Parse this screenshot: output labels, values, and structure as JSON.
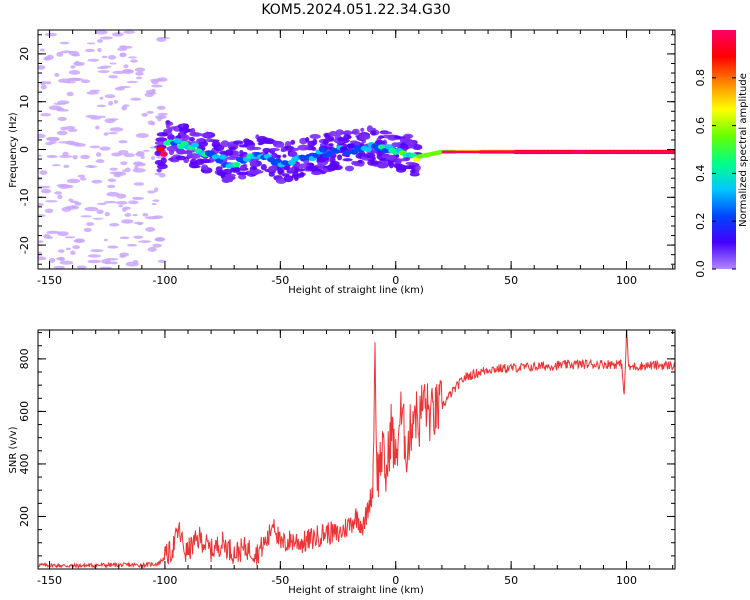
{
  "title": "KOM5.2024.051.22.34.G30",
  "chart_data": [
    {
      "type": "heatmap",
      "xlabel": "Height of straight line (km)",
      "ylabel": "Frequency (Hz)",
      "xlim": [
        -155,
        121
      ],
      "ylim": [
        -25,
        25
      ],
      "xticks": [
        -150,
        -100,
        -50,
        0,
        50,
        100
      ],
      "xtick_labels": [
        "-150",
        "-100",
        "-50",
        "0",
        "50",
        "100"
      ],
      "yticks": [
        -20,
        -10,
        0,
        10,
        20
      ],
      "ytick_labels": [
        "-20",
        "-10",
        "0",
        "10",
        "20"
      ],
      "colorbar": {
        "label": "Normalized spectral amplitude",
        "range": [
          0,
          1
        ],
        "ticks": [
          0.0,
          0.2,
          0.4,
          0.6,
          0.8
        ],
        "tick_labels": [
          "0.0",
          "0.2",
          "0.4",
          "0.6",
          "0.8"
        ],
        "colormap": [
          "#b388ff",
          "#4400ff",
          "#0044ff",
          "#00c8ff",
          "#00ff88",
          "#66ff00",
          "#ffff00",
          "#ff8800",
          "#ff0000",
          "#ff0066"
        ]
      },
      "ridge": [
        {
          "x": -100,
          "y": 2.0,
          "amp": 0.3
        },
        {
          "x": -90,
          "y": 1.0,
          "amp": 0.4
        },
        {
          "x": -80,
          "y": -1.0,
          "amp": 0.25
        },
        {
          "x": -72,
          "y": -3.0,
          "amp": 0.35
        },
        {
          "x": -60,
          "y": -1.0,
          "amp": 0.3
        },
        {
          "x": -48,
          "y": -3.0,
          "amp": 0.2
        },
        {
          "x": -35,
          "y": -1.0,
          "amp": 0.3
        },
        {
          "x": -20,
          "y": 0.0,
          "amp": 0.2
        },
        {
          "x": -10,
          "y": 0.5,
          "amp": 0.3
        },
        {
          "x": 0,
          "y": 0.0,
          "amp": 0.35
        },
        {
          "x": 10,
          "y": -1.5,
          "amp": 0.6
        },
        {
          "x": 20,
          "y": -0.5,
          "amp": 0.55
        },
        {
          "x": 40,
          "y": -0.5,
          "amp": 0.75
        },
        {
          "x": 60,
          "y": -0.5,
          "amp": 0.9
        },
        {
          "x": 80,
          "y": -0.5,
          "amp": 0.95
        },
        {
          "x": 100,
          "y": -0.5,
          "amp": 0.9
        },
        {
          "x": 121,
          "y": -0.5,
          "amp": 0.85
        }
      ]
    },
    {
      "type": "line",
      "xlabel": "Height of straight line (km)",
      "ylabel": "SNR (v/v)",
      "xlim": [
        -155,
        121
      ],
      "ylim": [
        0,
        910
      ],
      "xticks": [
        -150,
        -100,
        -50,
        0,
        50,
        100
      ],
      "xtick_labels": [
        "-150",
        "-100",
        "-50",
        "0",
        "50",
        "100"
      ],
      "yticks": [
        200,
        400,
        600,
        800
      ],
      "ytick_labels": [
        "200",
        "400",
        "600",
        "800"
      ],
      "color": "#ee3333",
      "series": [
        {
          "x": [
            -155,
            -140,
            -125,
            -110,
            -103,
            -97,
            -94,
            -91,
            -85,
            -80,
            -75,
            -70,
            -65,
            -60,
            -55,
            -53,
            -50,
            -45,
            -40,
            -35,
            -30,
            -25,
            -20,
            -17,
            -14,
            -12,
            -10,
            -9,
            -8,
            -6,
            -4,
            -2,
            0,
            2,
            5,
            8,
            10,
            12,
            15,
            20,
            25,
            30,
            40,
            50,
            60,
            70,
            80,
            90,
            98,
            99,
            100,
            101,
            102,
            110,
            121
          ],
          "y": [
            15,
            12,
            15,
            15,
            20,
            70,
            150,
            60,
            120,
            70,
            100,
            60,
            80,
            60,
            120,
            190,
            90,
            110,
            100,
            120,
            140,
            130,
            170,
            200,
            160,
            230,
            300,
            830,
            350,
            450,
            350,
            550,
            400,
            600,
            450,
            620,
            550,
            650,
            580,
            620,
            680,
            730,
            760,
            765,
            770,
            775,
            780,
            780,
            780,
            650,
            910,
            760,
            770,
            775,
            775
          ]
        }
      ]
    }
  ]
}
